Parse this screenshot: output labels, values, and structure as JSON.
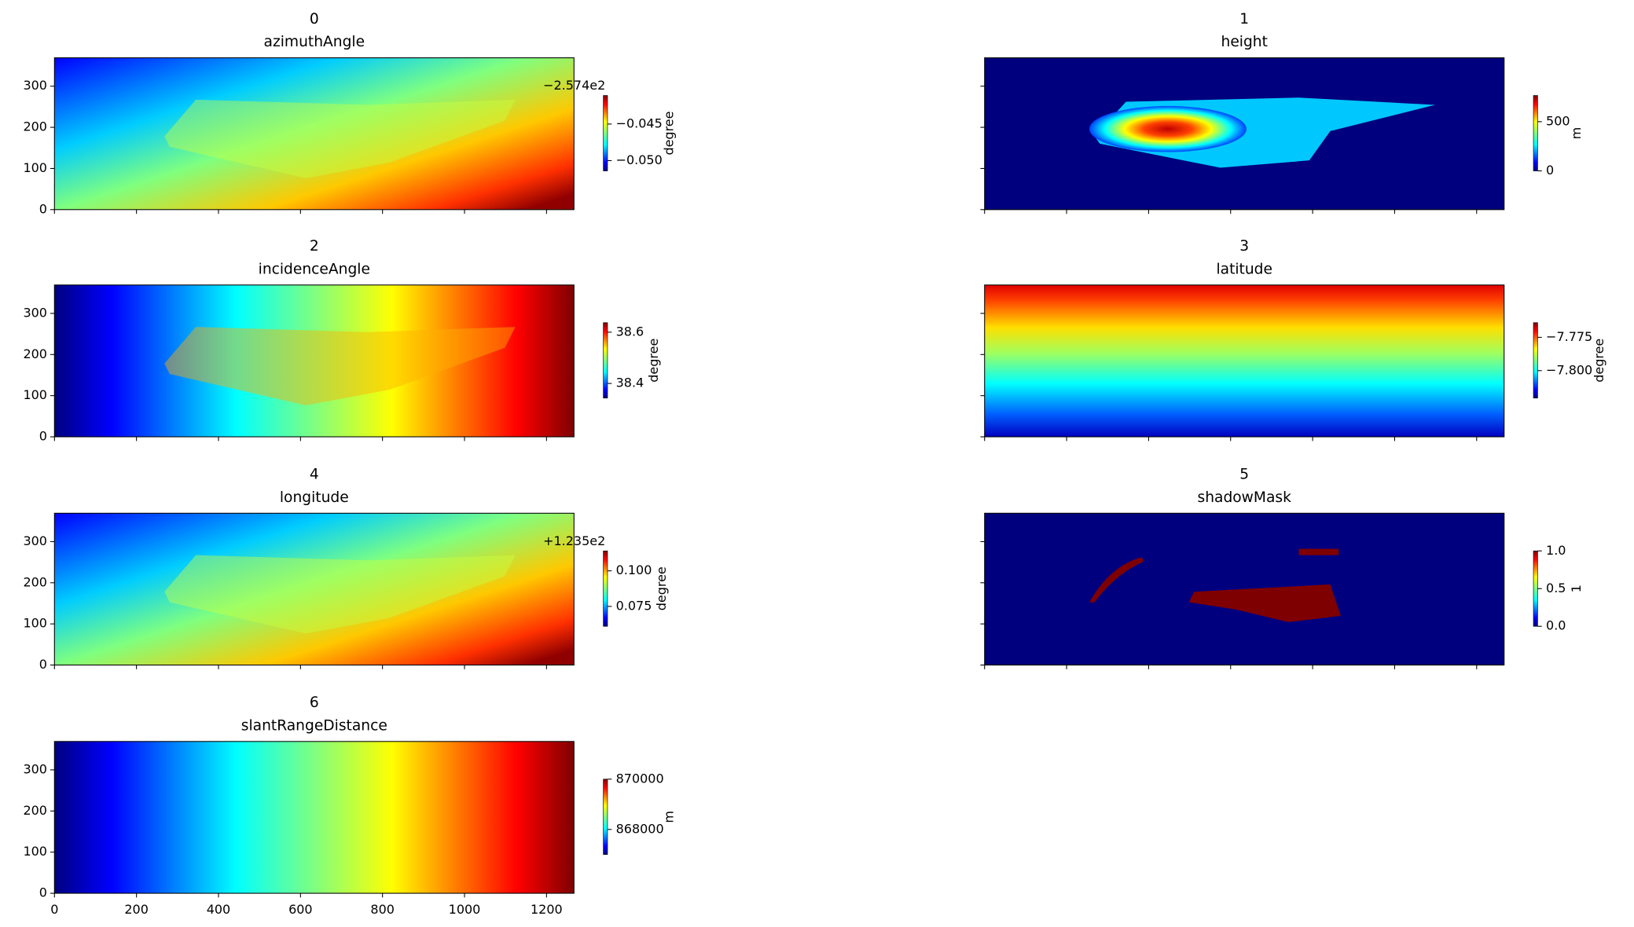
{
  "chart_data": [
    {
      "type": "heatmap",
      "title": "0",
      "subtitle": "azimuthAngle",
      "colormap": "jet",
      "xlim": [
        0,
        1267
      ],
      "ylim": [
        0,
        369
      ],
      "xticks": [
        0,
        200,
        400,
        600,
        800,
        1000,
        1200
      ],
      "yticks": [
        0,
        100,
        200,
        300
      ],
      "colorbar_label": "degree",
      "offset_text": "−2.574e2",
      "clim": [
        -0.0514,
        -0.0411
      ],
      "cticks": [
        {
          "value": -0.05,
          "label": "−0.050"
        },
        {
          "value": -0.045,
          "label": "−0.045"
        }
      ]
    },
    {
      "type": "heatmap",
      "title": "1",
      "subtitle": "height",
      "colormap": "jet",
      "xlim": [
        0,
        1267
      ],
      "ylim": [
        0,
        369
      ],
      "xticks": [
        0,
        200,
        400,
        600,
        800,
        1000,
        1200
      ],
      "yticks": [
        0,
        100,
        200,
        300
      ],
      "colorbar_label": "m",
      "clim": [
        0,
        766
      ],
      "cticks": [
        0,
        500
      ]
    },
    {
      "type": "heatmap",
      "title": "2",
      "subtitle": "incidenceAngle",
      "colormap": "jet",
      "xlim": [
        0,
        1267
      ],
      "ylim": [
        0,
        369
      ],
      "xticks": [
        0,
        200,
        400,
        600,
        800,
        1000,
        1200
      ],
      "yticks": [
        0,
        100,
        200,
        300
      ],
      "colorbar_label": "degree",
      "clim": [
        38.343,
        38.637
      ],
      "cticks": [
        38.4,
        38.6
      ]
    },
    {
      "type": "heatmap",
      "title": "3",
      "subtitle": "latitude",
      "colormap": "jet",
      "xlim": [
        0,
        1267
      ],
      "ylim": [
        0,
        369
      ],
      "xticks": [
        0,
        200,
        400,
        600,
        800,
        1000,
        1200
      ],
      "yticks": [
        0,
        100,
        200,
        300
      ],
      "colorbar_label": "degree",
      "clim": [
        -7.8206,
        -7.764
      ],
      "cticks": [
        {
          "value": -7.8,
          "label": "−7.800"
        },
        {
          "value": -7.775,
          "label": "−7.775"
        }
      ]
    },
    {
      "type": "heatmap",
      "title": "4",
      "subtitle": "longitude",
      "colormap": "jet",
      "xlim": [
        0,
        1267
      ],
      "ylim": [
        0,
        369
      ],
      "xticks": [
        0,
        200,
        400,
        600,
        800,
        1000,
        1200
      ],
      "yticks": [
        0,
        100,
        200,
        300
      ],
      "colorbar_label": "degree",
      "offset_text": "+1.235e2",
      "clim": [
        0.061,
        0.114
      ],
      "cticks": [
        {
          "value": 0.075,
          "label": "0.075"
        },
        {
          "value": 0.1,
          "label": "0.100"
        }
      ]
    },
    {
      "type": "heatmap",
      "title": "5",
      "subtitle": "shadowMask",
      "colormap": "jet",
      "xlim": [
        0,
        1267
      ],
      "ylim": [
        0,
        369
      ],
      "xticks": [
        0,
        200,
        400,
        600,
        800,
        1000,
        1200
      ],
      "yticks": [
        0,
        100,
        200,
        300
      ],
      "colorbar_label": "1",
      "clim": [
        0,
        1
      ],
      "cticks": [
        {
          "value": 0,
          "label": "0.0"
        },
        0.5,
        {
          "value": 1,
          "label": "1.0"
        }
      ]
    },
    {
      "type": "heatmap",
      "title": "6",
      "subtitle": "slantRangeDistance",
      "colormap": "jet",
      "xlim": [
        0,
        1267
      ],
      "ylim": [
        0,
        369
      ],
      "xticks": [
        0,
        200,
        400,
        600,
        800,
        1000,
        1200
      ],
      "yticks": [
        0,
        100,
        200,
        300
      ],
      "colorbar_label": "m",
      "clim": [
        867000,
        870000
      ],
      "cticks": [
        868000,
        870000
      ]
    }
  ]
}
